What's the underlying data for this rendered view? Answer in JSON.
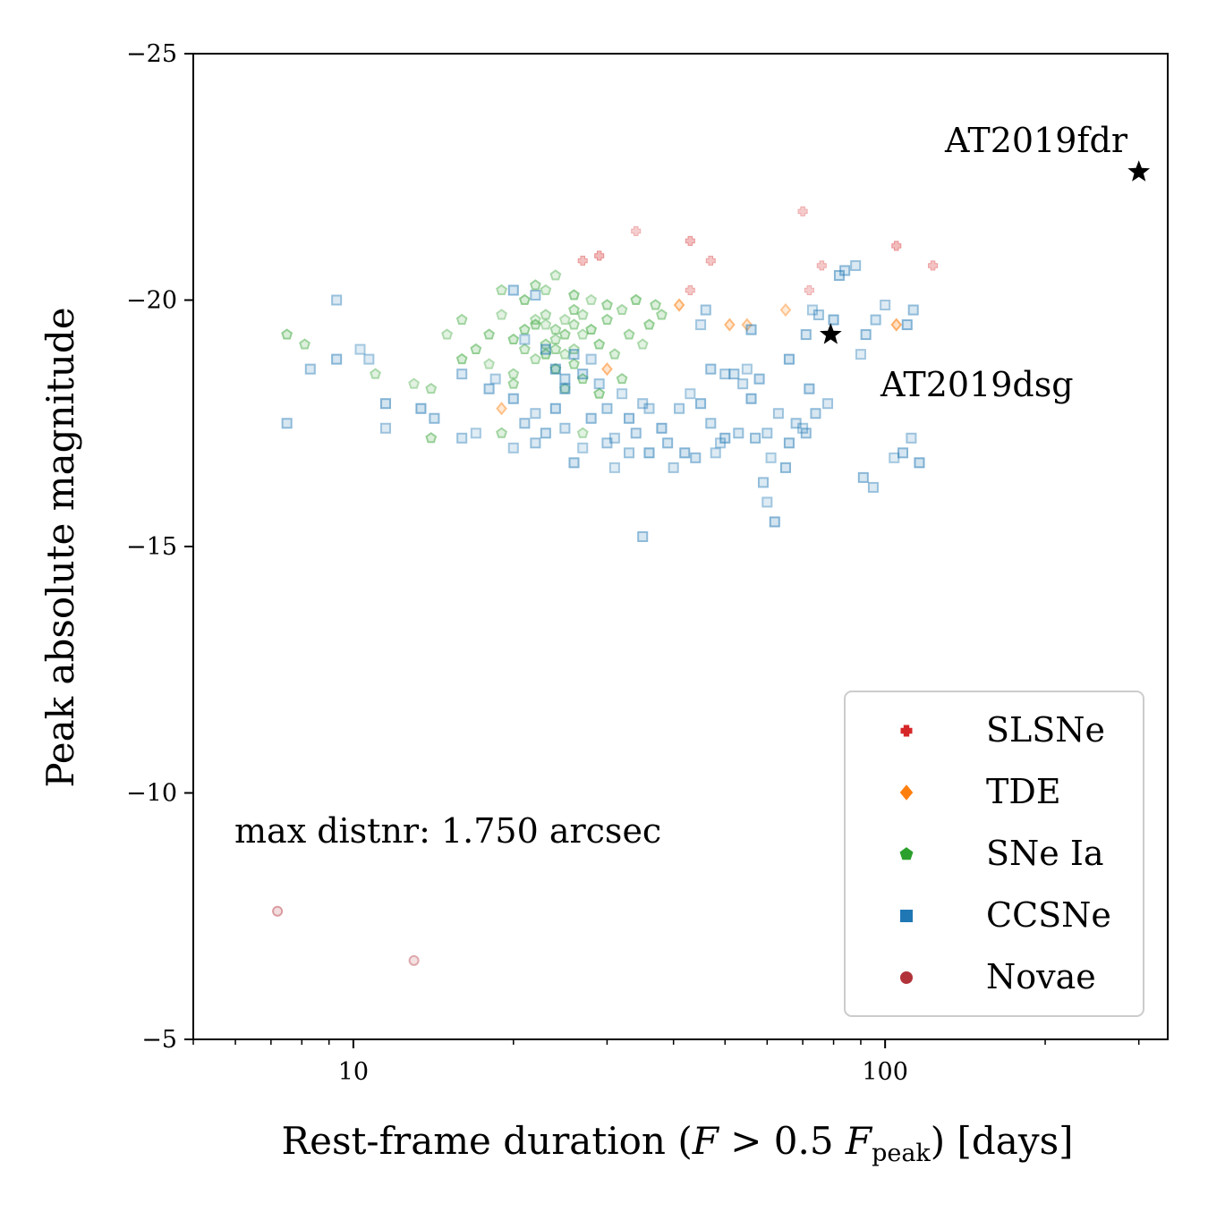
{
  "chart_data": {
    "type": "scatter",
    "xscale": "log",
    "xlim": [
      5,
      340
    ],
    "ylim": [
      -25,
      -5
    ],
    "y_inverted": true,
    "grid": false,
    "legend_position": "lower-right",
    "xlabel": "Rest-frame duration (F > 0.5 F_peak) [days]",
    "xlabel_parts": {
      "pre": "Rest-frame duration (",
      "F1": "F",
      "gt": " > 0.5 ",
      "F2": "F",
      "sub": "peak",
      "post": ") [days]"
    },
    "ylabel": "Peak absolute magnitude",
    "xticks": [
      10,
      100
    ],
    "xtick_labels": [
      "10",
      "100"
    ],
    "yticks": [
      -25,
      -20,
      -15,
      -10,
      -5
    ],
    "ytick_labels": [
      "−25",
      "−20",
      "−15",
      "−10",
      "−5"
    ],
    "annotation": "max distnr: 1.750 arcsec",
    "series": [
      {
        "name": "SLSNe",
        "color": "#d62728",
        "marker": "plus",
        "points": [
          [
            34,
            -21.4
          ],
          [
            43,
            -21.2
          ],
          [
            47,
            -20.8
          ],
          [
            70,
            -21.8
          ],
          [
            105,
            -21.1
          ],
          [
            123,
            -20.7
          ],
          [
            76,
            -20.7
          ],
          [
            29,
            -20.9
          ],
          [
            27,
            -20.8
          ],
          [
            43,
            -20.2
          ],
          [
            72,
            -20.2
          ]
        ]
      },
      {
        "name": "TDE",
        "color": "#ff7f0e",
        "marker": "diamond",
        "points": [
          [
            65,
            -19.8
          ],
          [
            41,
            -19.9
          ],
          [
            51,
            -19.5
          ],
          [
            55,
            -19.5
          ],
          [
            105,
            -19.5
          ],
          [
            30,
            -18.6
          ],
          [
            19,
            -17.8
          ]
        ]
      },
      {
        "name": "SNe Ia",
        "color": "#2ca02c",
        "marker": "pentagon",
        "points": [
          [
            24,
            -20.5
          ],
          [
            21,
            -20.0
          ],
          [
            26,
            -19.8
          ],
          [
            23,
            -19.7
          ],
          [
            25,
            -19.6
          ],
          [
            22,
            -19.5
          ],
          [
            24,
            -19.4
          ],
          [
            27,
            -19.3
          ],
          [
            20,
            -19.2
          ],
          [
            23,
            -19.1
          ],
          [
            26,
            -19.0
          ],
          [
            28,
            -19.4
          ],
          [
            30,
            -19.6
          ],
          [
            32,
            -19.8
          ],
          [
            19,
            -19.7
          ],
          [
            18,
            -19.3
          ],
          [
            21,
            -19.0
          ],
          [
            25,
            -18.9
          ],
          [
            29,
            -19.1
          ],
          [
            33,
            -19.3
          ],
          [
            22,
            -18.8
          ],
          [
            24,
            -18.6
          ],
          [
            27,
            -18.4
          ],
          [
            20,
            -18.5
          ],
          [
            18,
            -18.7
          ],
          [
            17,
            -19.0
          ],
          [
            31,
            -18.9
          ],
          [
            35,
            -19.1
          ],
          [
            36,
            -19.5
          ],
          [
            38,
            -19.7
          ],
          [
            23,
            -20.2
          ],
          [
            26,
            -20.1
          ],
          [
            22,
            -20.3
          ],
          [
            19,
            -20.2
          ],
          [
            28,
            -20.0
          ],
          [
            30,
            -19.9
          ],
          [
            16,
            -19.6
          ],
          [
            15,
            -19.3
          ],
          [
            16,
            -18.8
          ],
          [
            20,
            -18.3
          ],
          [
            25,
            -18.2
          ],
          [
            29,
            -18.1
          ],
          [
            32,
            -18.4
          ],
          [
            14,
            -18.2
          ],
          [
            13,
            -18.3
          ],
          [
            14,
            -17.2
          ],
          [
            19,
            -17.3
          ],
          [
            27,
            -17.3
          ],
          [
            7.5,
            -19.3
          ],
          [
            8.1,
            -19.1
          ],
          [
            11,
            -18.5
          ],
          [
            34,
            -20.0
          ],
          [
            37,
            -19.9
          ],
          [
            24,
            -19.2
          ],
          [
            23,
            -19.5
          ],
          [
            25,
            -19.3
          ],
          [
            26,
            -19.5
          ],
          [
            22,
            -19.6
          ],
          [
            21,
            -19.4
          ],
          [
            24,
            -19.0
          ],
          [
            27,
            -19.7
          ],
          [
            23,
            -18.9
          ],
          [
            26,
            -18.7
          ]
        ]
      },
      {
        "name": "CCSNe",
        "color": "#1f77b4",
        "marker": "square",
        "points": [
          [
            9.3,
            -20.0
          ],
          [
            10.3,
            -19.0
          ],
          [
            9.3,
            -18.8
          ],
          [
            8.3,
            -18.6
          ],
          [
            10.7,
            -18.8
          ],
          [
            11.5,
            -17.9
          ],
          [
            7.5,
            -17.5
          ],
          [
            11.5,
            -17.4
          ],
          [
            13.4,
            -17.8
          ],
          [
            14.2,
            -17.6
          ],
          [
            16,
            -17.2
          ],
          [
            17,
            -17.3
          ],
          [
            18,
            -18.2
          ],
          [
            16,
            -18.5
          ],
          [
            18.5,
            -18.4
          ],
          [
            20,
            -18.0
          ],
          [
            21,
            -17.5
          ],
          [
            22,
            -17.7
          ],
          [
            24,
            -17.8
          ],
          [
            23,
            -17.3
          ],
          [
            25,
            -17.4
          ],
          [
            27,
            -17.0
          ],
          [
            28,
            -17.6
          ],
          [
            30,
            -17.1
          ],
          [
            31,
            -17.2
          ],
          [
            33,
            -17.6
          ],
          [
            34,
            -17.3
          ],
          [
            36,
            -17.8
          ],
          [
            38,
            -17.4
          ],
          [
            39,
            -17.1
          ],
          [
            41,
            -17.8
          ],
          [
            43,
            -18.1
          ],
          [
            45,
            -17.9
          ],
          [
            47,
            -17.5
          ],
          [
            48,
            -16.9
          ],
          [
            50,
            -17.2
          ],
          [
            52,
            -18.5
          ],
          [
            54,
            -18.3
          ],
          [
            56,
            -18.0
          ],
          [
            57,
            -17.2
          ],
          [
            60,
            -17.3
          ],
          [
            61,
            -16.8
          ],
          [
            65,
            -16.6
          ],
          [
            68,
            -17.5
          ],
          [
            70,
            -17.4
          ],
          [
            72,
            -18.2
          ],
          [
            74,
            -17.7
          ],
          [
            78,
            -17.9
          ],
          [
            80,
            -19.6
          ],
          [
            84,
            -20.6
          ],
          [
            88,
            -20.7
          ],
          [
            90,
            -18.9
          ],
          [
            92,
            -19.3
          ],
          [
            96,
            -19.6
          ],
          [
            100,
            -19.9
          ],
          [
            110,
            -19.5
          ],
          [
            113,
            -19.8
          ],
          [
            112,
            -17.2
          ],
          [
            116,
            -16.7
          ],
          [
            91,
            -16.4
          ],
          [
            95,
            -16.2
          ],
          [
            104,
            -16.8
          ],
          [
            108,
            -16.9
          ],
          [
            59,
            -16.3
          ],
          [
            60,
            -15.9
          ],
          [
            62,
            -15.5
          ],
          [
            35,
            -15.2
          ],
          [
            63,
            -17.7
          ],
          [
            66,
            -18.8
          ],
          [
            71,
            -19.3
          ],
          [
            75,
            -19.7
          ],
          [
            73,
            -19.8
          ],
          [
            82,
            -20.5
          ],
          [
            46,
            -19.8
          ],
          [
            45,
            -19.5
          ],
          [
            56,
            -19.4
          ],
          [
            30,
            -17.8
          ],
          [
            35,
            -17.9
          ],
          [
            25,
            -18.2
          ],
          [
            27,
            -18.5
          ],
          [
            29,
            -18.3
          ],
          [
            32,
            -18.1
          ],
          [
            20,
            -20.2
          ],
          [
            22,
            -20.1
          ],
          [
            21,
            -19.2
          ],
          [
            23,
            -19.0
          ],
          [
            26,
            -18.9
          ],
          [
            28,
            -18.8
          ],
          [
            24,
            -18.6
          ],
          [
            25,
            -18.4
          ],
          [
            33,
            -16.9
          ],
          [
            31,
            -16.6
          ],
          [
            26,
            -16.7
          ],
          [
            22,
            -17.1
          ],
          [
            20,
            -17.0
          ],
          [
            42,
            -16.9
          ],
          [
            44,
            -16.8
          ],
          [
            40,
            -16.6
          ],
          [
            36,
            -16.9
          ],
          [
            47,
            -18.6
          ],
          [
            50,
            -18.5
          ],
          [
            55,
            -18.6
          ],
          [
            58,
            -18.4
          ],
          [
            53,
            -17.3
          ],
          [
            49,
            -17.1
          ],
          [
            66,
            -17.1
          ],
          [
            71,
            -17.3
          ]
        ]
      },
      {
        "name": "Novae",
        "color": "#b2323a",
        "marker": "circle",
        "points": [
          [
            7.2,
            -7.6
          ],
          [
            13,
            -6.6
          ]
        ]
      }
    ],
    "highlights": [
      {
        "name": "AT2019fdr",
        "x": 300,
        "y": -22.6,
        "color": "#000000",
        "marker": "star"
      },
      {
        "name": "AT2019dsg",
        "x": 79,
        "y": -19.3,
        "color": "#000000",
        "marker": "star"
      }
    ]
  }
}
